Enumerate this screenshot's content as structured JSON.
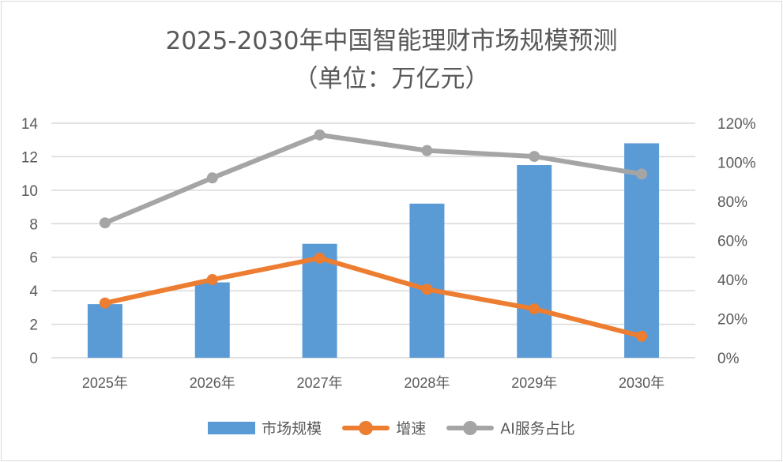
{
  "title_line1": "2025-2030年中国智能理财市场规模预测",
  "title_line2": "（单位：万亿元）",
  "chart_data": {
    "type": "bar",
    "title": "2025-2030年中国智能理财市场规模预测（单位：万亿元）",
    "categories": [
      "2025年",
      "2026年",
      "2027年",
      "2028年",
      "2029年",
      "2030年"
    ],
    "series": [
      {
        "name": "市场规模",
        "type": "bar",
        "axis": "left",
        "color": "#5b9bd5",
        "values": [
          3.2,
          4.5,
          6.8,
          9.2,
          11.5,
          12.8
        ]
      },
      {
        "name": "增速",
        "type": "line",
        "axis": "right",
        "color": "#ed7d31",
        "values": [
          28,
          40,
          51,
          35,
          25,
          11
        ]
      },
      {
        "name": "AI服务占比",
        "type": "line",
        "axis": "right",
        "color": "#a5a5a5",
        "values": [
          69,
          92,
          114,
          106,
          103,
          94
        ]
      }
    ],
    "yleft": {
      "min": 0,
      "max": 14,
      "step": 2,
      "ticks": [
        "0",
        "2",
        "4",
        "6",
        "8",
        "10",
        "12",
        "14"
      ]
    },
    "yright": {
      "min": 0,
      "max": 120,
      "step": 20,
      "ticks": [
        "0%",
        "20%",
        "40%",
        "60%",
        "80%",
        "100%",
        "120%"
      ]
    },
    "grid": true,
    "legend": "bottom"
  }
}
